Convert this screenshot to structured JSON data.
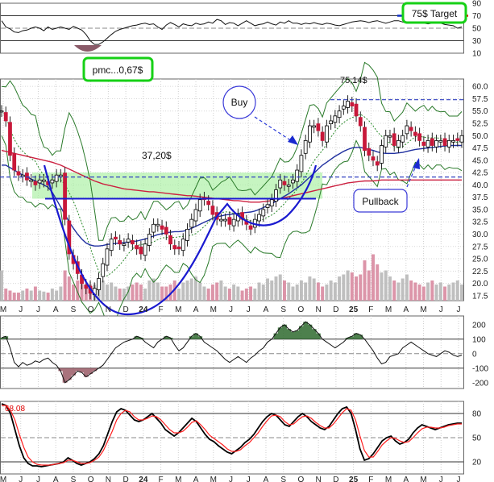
{
  "chart_data": [
    {
      "type": "line",
      "panel": "rsi",
      "y_ticks": [
        "90",
        "70",
        "50",
        "30",
        "10"
      ],
      "ylim": [
        10,
        90
      ],
      "levels": [
        70,
        50,
        30
      ],
      "series": [
        {
          "values": [
            62,
            52,
            49,
            44,
            43,
            46,
            47,
            50,
            52,
            50,
            46,
            52,
            48,
            50,
            52,
            50,
            48,
            53,
            50,
            47,
            40,
            30,
            24,
            24,
            28,
            34,
            40,
            45,
            48,
            50,
            52,
            54,
            55,
            57,
            58,
            56,
            57,
            52,
            48,
            55,
            59,
            56,
            52,
            57,
            55,
            54,
            58,
            56,
            57,
            60,
            58,
            64,
            62,
            56,
            59,
            58,
            54,
            58,
            62,
            58,
            54,
            56,
            57,
            60,
            57,
            55,
            60,
            58,
            62,
            58,
            58,
            56,
            58,
            57,
            59,
            57,
            56,
            58,
            57,
            55,
            54,
            56,
            58,
            60,
            61,
            62,
            61,
            59,
            61,
            62,
            60,
            58,
            60,
            62,
            62,
            60,
            58,
            60,
            60,
            59,
            58,
            57,
            58,
            59,
            58,
            56,
            55,
            54,
            50,
            52
          ]
        }
      ],
      "highlights": [
        {
          "color": "#f00000",
          "y": 70
        },
        {
          "color": "#1030c8",
          "y": 70
        }
      ]
    },
    {
      "type": "candlestick",
      "panel": "price",
      "x_ticks": [
        "M",
        "J",
        "J",
        "A",
        "S",
        "O",
        "N",
        "D",
        "24",
        "F",
        "M",
        "A",
        "M",
        "J",
        "J",
        "A",
        "S",
        "O",
        "N",
        "D",
        "25",
        "F",
        "M",
        "A",
        "M",
        "J",
        "J"
      ],
      "y_ticks": [
        "60.0",
        "57.5",
        "55.0",
        "52.5",
        "50.0",
        "47.5",
        "45.0",
        "42.5",
        "40.0",
        "37.5",
        "35.0",
        "32.5",
        "30.0",
        "27.5",
        "25.0",
        "22.5",
        "20.0",
        "17.5"
      ],
      "ylim": [
        16.5,
        61.5
      ],
      "annotations": [
        "pmc...0,67$",
        "75$ Target",
        "75,14$",
        "37,20$",
        "Buy",
        "Pullback"
      ],
      "levels": [
        {
          "label": "75,14$",
          "value": 57.3,
          "color": "#3040c0",
          "style": "dashed"
        },
        {
          "label": "37,20$",
          "value": 37.2,
          "color": "#1a1ad0",
          "style": "solid"
        },
        {
          "label": "",
          "value": 41.6,
          "color": "#3040c0",
          "style": "dashed"
        }
      ],
      "close_values": [
        55,
        53,
        46,
        43,
        42,
        42,
        41,
        41,
        40,
        41,
        41,
        40,
        41,
        42,
        42,
        33,
        26,
        24,
        22,
        20,
        19,
        18,
        19,
        21,
        24,
        27,
        29,
        29,
        28,
        28,
        29,
        28,
        27,
        26,
        28,
        30,
        32,
        32,
        31,
        30,
        28,
        27,
        27,
        29,
        31,
        33,
        35,
        37,
        37,
        36,
        34,
        33,
        33,
        33,
        32,
        33,
        34,
        33,
        32,
        31,
        33,
        34,
        35,
        36,
        37,
        39,
        41,
        40,
        40,
        41,
        43,
        46,
        49,
        52,
        52,
        51,
        49,
        52,
        53,
        54,
        55,
        56,
        57,
        56,
        54,
        52,
        47,
        46,
        45,
        44,
        48,
        50,
        50,
        48,
        49,
        50,
        52,
        51,
        50,
        49,
        48,
        49,
        48,
        49,
        49,
        48,
        49,
        49,
        49,
        50
      ],
      "volume": [
        30,
        12,
        10,
        8,
        8,
        10,
        12,
        10,
        14,
        10,
        9,
        8,
        12,
        10,
        14,
        30,
        24,
        16,
        20,
        18,
        14,
        16,
        16,
        14,
        20,
        16,
        18,
        14,
        12,
        12,
        14,
        16,
        18,
        16,
        12,
        20,
        22,
        18,
        14,
        14,
        16,
        20,
        12,
        18,
        20,
        22,
        24,
        18,
        14,
        12,
        16,
        18,
        20,
        14,
        12,
        16,
        14,
        10,
        12,
        14,
        12,
        18,
        16,
        22,
        20,
        24,
        26,
        20,
        18,
        14,
        16,
        20,
        18,
        24,
        22,
        18,
        14,
        16,
        20,
        18,
        24,
        26,
        30,
        28,
        24,
        26,
        40,
        30,
        46,
        36,
        28,
        30,
        24,
        20,
        18,
        22,
        26,
        20,
        18,
        16,
        14,
        18,
        20,
        16,
        18,
        14,
        16,
        18,
        20,
        16
      ],
      "series": [
        {
          "name": "moving average (200)",
          "color": "#cc2040",
          "values": [
            47,
            46.8,
            46.6,
            46.4,
            46.2,
            46,
            45.8,
            45.6,
            45.4,
            45.2,
            45,
            44.8,
            44.6,
            44.3,
            44,
            43.6,
            43.2,
            42.8,
            42.4,
            42,
            41.6,
            41.2,
            40.8,
            40.5,
            40.2,
            40,
            39.8,
            39.6,
            39.4,
            39.2,
            39.1,
            39,
            38.9,
            38.8,
            38.7,
            38.6,
            38.6,
            38.5,
            38.4,
            38.3,
            38.2,
            38.1,
            38,
            37.9,
            37.8,
            37.8,
            37.7,
            37.6,
            37.5,
            37.4,
            37.3,
            37.2,
            37.1,
            37,
            36.9,
            36.8,
            36.8,
            36.7,
            36.6,
            36.5,
            36.5,
            36.5,
            36.6,
            36.7,
            36.8,
            37,
            37.2,
            37.4,
            37.6,
            37.8,
            38,
            38.2,
            38.4,
            38.6,
            38.8,
            39,
            39.2,
            39.4,
            39.6,
            39.8,
            40,
            40.2,
            40.4,
            40.5,
            40.6,
            40.7,
            40.8,
            40.8,
            40.8,
            40.9,
            41,
            41,
            41,
            41,
            41,
            41,
            41,
            41,
            41,
            41,
            41,
            41,
            41,
            41,
            41,
            41,
            41,
            41,
            41,
            41
          ]
        },
        {
          "name": "moving average (50)",
          "color": "#2030a0",
          "values": [
            44,
            44,
            43.5,
            43,
            42.5,
            42,
            41.6,
            41.2,
            40.8,
            40.4,
            40,
            39.5,
            38.5,
            37,
            35.5,
            34,
            32.5,
            31.2,
            30,
            29,
            28.2,
            27.8,
            27.6,
            27.6,
            27.7,
            27.9,
            28,
            28.1,
            28.2,
            28.3,
            28.4,
            28.5,
            28.6,
            28.8,
            29,
            29.3,
            29.6,
            29.9,
            30.1,
            30.3,
            30.4,
            30.5,
            30.5,
            30.6,
            30.8,
            31.2,
            31.6,
            32,
            32.4,
            32.8,
            33.2,
            33.5,
            33.7,
            33.9,
            34,
            34.1,
            34.2,
            34.3,
            34.4,
            34.5,
            34.7,
            35,
            35.4,
            35.8,
            36.2,
            36.7,
            37.2,
            37.7,
            38.2,
            38.8,
            39.4,
            40,
            40.8,
            41.6,
            42.4,
            43.2,
            44,
            44.6,
            45.2,
            45.8,
            46.3,
            46.8,
            47.2,
            47.5,
            47.6,
            47.6,
            47.4,
            47.2,
            47,
            46.7,
            46.5,
            46.4,
            46.4,
            46.4,
            46.5,
            46.6,
            46.8,
            47,
            47.2,
            47.3,
            47.4,
            47.5,
            47.6,
            47.7,
            47.8,
            47.9,
            48,
            48,
            48,
            48
          ]
        }
      ]
    },
    {
      "type": "area",
      "panel": "momentum",
      "y_ticks": [
        "200",
        "100",
        "0",
        "-100",
        "-200"
      ],
      "ylim": [
        -240,
        260
      ],
      "levels": [
        100,
        0,
        -100
      ],
      "series": [
        {
          "values": [
            110,
            120,
            40,
            -60,
            -90,
            -60,
            -80,
            -70,
            -50,
            -60,
            -40,
            -30,
            -60,
            -80,
            -120,
            -200,
            -180,
            -150,
            -120,
            -130,
            -160,
            -140,
            -120,
            -100,
            -80,
            -40,
            0,
            40,
            60,
            80,
            90,
            100,
            120,
            110,
            80,
            60,
            40,
            80,
            100,
            120,
            110,
            60,
            20,
            40,
            80,
            120,
            140,
            120,
            80,
            60,
            40,
            20,
            -10,
            -40,
            -60,
            -40,
            -20,
            -40,
            -60,
            -30,
            -10,
            20,
            40,
            80,
            100,
            140,
            180,
            200,
            170,
            150,
            160,
            190,
            220,
            200,
            170,
            140,
            100,
            80,
            60,
            40,
            60,
            80,
            110,
            120,
            140,
            130,
            100,
            60,
            20,
            -30,
            -70,
            -60,
            -20,
            -10,
            0,
            40,
            60,
            80,
            60,
            40,
            20,
            0,
            -10,
            -20,
            0,
            20,
            10,
            -10,
            -20,
            -10
          ]
        }
      ]
    },
    {
      "type": "line",
      "panel": "stochastic",
      "y_ticks": [
        "80",
        "50",
        "20"
      ],
      "ylim": [
        5,
        95
      ],
      "levels": [
        80,
        50,
        20
      ],
      "last_value_label": "68.08",
      "series": [
        {
          "name": "%K",
          "color": "#000000",
          "values": [
            92,
            90,
            80,
            60,
            40,
            25,
            18,
            15,
            15,
            14,
            15,
            16,
            17,
            18,
            20,
            25,
            22,
            18,
            16,
            18,
            20,
            24,
            30,
            40,
            55,
            70,
            82,
            86,
            84,
            78,
            72,
            70,
            72,
            76,
            80,
            74,
            68,
            60,
            56,
            52,
            56,
            62,
            68,
            74,
            70,
            62,
            54,
            48,
            45,
            40,
            36,
            32,
            30,
            34,
            38,
            44,
            48,
            54,
            62,
            70,
            76,
            80,
            78,
            72,
            66,
            64,
            70,
            76,
            80,
            76,
            70,
            66,
            62,
            60,
            64,
            72,
            80,
            86,
            88,
            80,
            60,
            36,
            22,
            24,
            30,
            38,
            46,
            50,
            52,
            46,
            42,
            44,
            48,
            56,
            62,
            66,
            64,
            62,
            60,
            62,
            64,
            66,
            67,
            68,
            68
          ]
        },
        {
          "name": "%D",
          "color": "#ff2020",
          "values": [
            90,
            90,
            84,
            72,
            54,
            38,
            26,
            20,
            17,
            16,
            16,
            16,
            17,
            18,
            19,
            22,
            22,
            20,
            18,
            18,
            19,
            22,
            26,
            34,
            46,
            58,
            72,
            80,
            84,
            82,
            76,
            72,
            72,
            74,
            77,
            76,
            72,
            66,
            60,
            56,
            56,
            58,
            63,
            69,
            71,
            66,
            60,
            53,
            49,
            45,
            41,
            36,
            33,
            33,
            35,
            40,
            44,
            50,
            56,
            64,
            71,
            77,
            78,
            76,
            70,
            66,
            67,
            72,
            76,
            77,
            74,
            69,
            65,
            62,
            62,
            67,
            74,
            81,
            86,
            84,
            72,
            52,
            34,
            26,
            26,
            33,
            41,
            46,
            50,
            49,
            46,
            44,
            45,
            50,
            56,
            61,
            63,
            63,
            62,
            62,
            63,
            65,
            66,
            67,
            67
          ]
        }
      ]
    }
  ]
}
